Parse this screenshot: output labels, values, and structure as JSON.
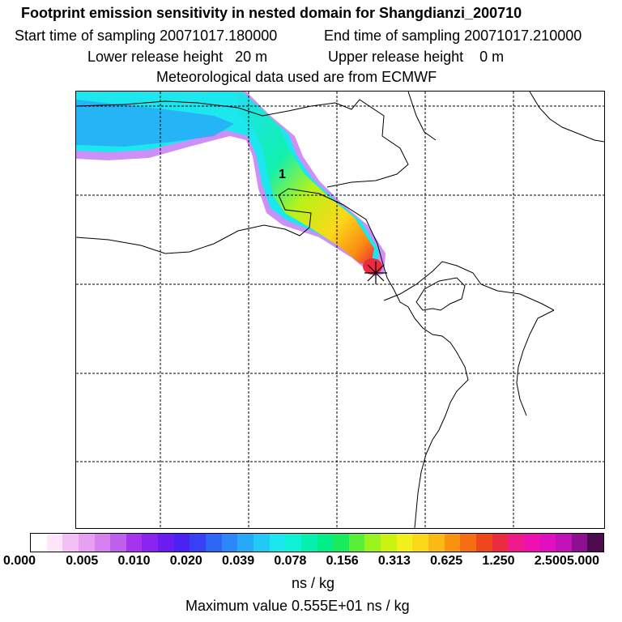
{
  "header": {
    "title": "Footprint emission sensitivity in nested domain for Shangdianzi_200710",
    "start_label": "Start time of sampling 20071017.180000",
    "end_label": "End time of sampling 20071017.210000",
    "lower_label": "Lower release height   20 m",
    "upper_label": "Upper release height    0 m",
    "met_label": "Meteorological data used are from ECMWF"
  },
  "map": {
    "plume_label": "1",
    "station_marker": "station-star"
  },
  "colorbar": {
    "ticks": [
      "0.000",
      "0.005",
      "0.010",
      "0.020",
      "0.039",
      "0.078",
      "0.156",
      "0.313",
      "0.625",
      "1.250",
      "2.500",
      "5.000"
    ],
    "colors": [
      "#ffffff",
      "#fde6fb",
      "#f3c0f6",
      "#e8a0f2",
      "#d780ef",
      "#c060ee",
      "#a633ee",
      "#8a22f0",
      "#6b1cf0",
      "#4c22f2",
      "#3640f4",
      "#2e66f6",
      "#2a88f8",
      "#26aaf8",
      "#22c8f6",
      "#1ce6ee",
      "#10f0d4",
      "#08f0b0",
      "#04ee88",
      "#18ec5e",
      "#5af03a",
      "#9af21e",
      "#ccf212",
      "#f2f01a",
      "#fcd81a",
      "#fcb814",
      "#fa9410",
      "#f66e14",
      "#f0461e",
      "#ec2a40",
      "#f01a8a",
      "#f010b0",
      "#e010c0",
      "#c012b6",
      "#8e1090",
      "#4e0a4e"
    ],
    "units": "ns / kg",
    "max_label": "Maximum value  0.555E+01 ns / kg"
  },
  "colors": {
    "frame": "#000000",
    "grid": "#000000"
  }
}
